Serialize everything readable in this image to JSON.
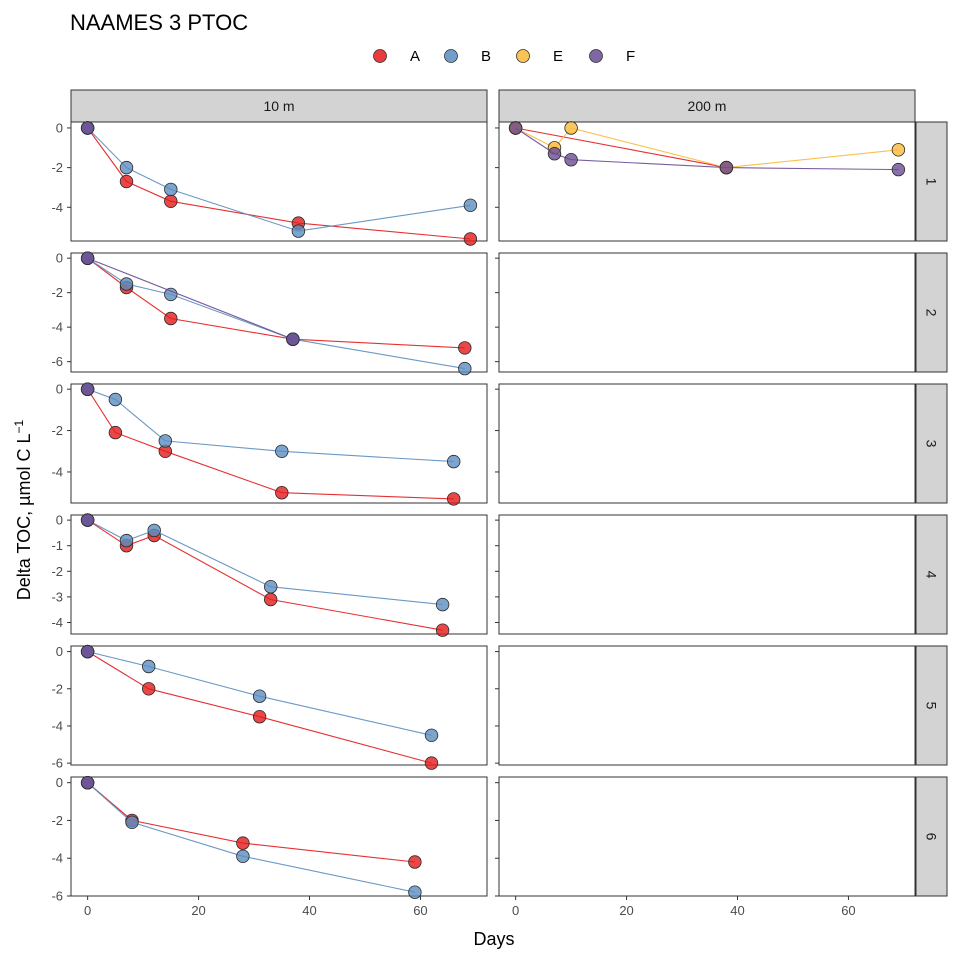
{
  "chart_data": {
    "type": "scatter",
    "title": "NAAMES 3 PTOC",
    "xlabel": "Days",
    "ylabel": "Delta TOC, µmol C L",
    "ylabel_superscript": "−1",
    "legend": {
      "position": "top",
      "entries": [
        {
          "label": "A",
          "color": "#E41A1C"
        },
        {
          "label": "B",
          "color": "#5B8DBF"
        },
        {
          "label": "E",
          "color": "#F9B938"
        },
        {
          "label": "F",
          "color": "#6A4C93"
        }
      ]
    },
    "x_range": [
      -3,
      72
    ],
    "x_ticks": [
      0,
      20,
      40,
      60
    ],
    "facet_columns": [
      "10 m",
      "200 m"
    ],
    "facet_rows": [
      "1",
      "2",
      "3",
      "4",
      "5",
      "6"
    ],
    "panels": [
      {
        "col": "10 m",
        "row": "1",
        "ylim": [
          -5.7,
          0.3
        ],
        "y_ticks": [
          0,
          -2,
          -4
        ],
        "series": [
          {
            "name": "A",
            "x": [
              0,
              7,
              15,
              38,
              69
            ],
            "y": [
              0,
              -2.7,
              -3.7,
              -4.8,
              -5.6
            ]
          },
          {
            "name": "B",
            "x": [
              0,
              7,
              15,
              38,
              69
            ],
            "y": [
              0,
              -2.0,
              -3.1,
              -5.2,
              -3.9
            ]
          },
          {
            "name": "F",
            "x": [
              0
            ],
            "y": [
              0
            ]
          }
        ]
      },
      {
        "col": "200 m",
        "row": "1",
        "ylim": [
          -5.7,
          0.3
        ],
        "y_ticks": [
          0,
          -2,
          -4
        ],
        "series": [
          {
            "name": "A",
            "x": [
              0,
              38
            ],
            "y": [
              0,
              -2.0
            ]
          },
          {
            "name": "E",
            "x": [
              0,
              7,
              10,
              38,
              69
            ],
            "y": [
              0,
              -1.0,
              0,
              -2.0,
              -1.1
            ]
          },
          {
            "name": "F",
            "x": [
              0,
              7,
              10,
              38,
              69
            ],
            "y": [
              0,
              -1.3,
              -1.6,
              -2.0,
              -2.1
            ]
          }
        ]
      },
      {
        "col": "10 m",
        "row": "2",
        "ylim": [
          -6.6,
          0.3
        ],
        "y_ticks": [
          0,
          -2,
          -4,
          -6
        ],
        "series": [
          {
            "name": "A",
            "x": [
              0,
              7,
              15,
              37,
              68
            ],
            "y": [
              0,
              -1.7,
              -3.5,
              -4.7,
              -5.2
            ]
          },
          {
            "name": "B",
            "x": [
              0,
              7,
              15,
              37,
              68
            ],
            "y": [
              0,
              -1.5,
              -2.1,
              -4.7,
              -6.4
            ]
          },
          {
            "name": "F",
            "x": [
              0,
              37
            ],
            "y": [
              0,
              -4.7
            ]
          }
        ]
      },
      {
        "col": "200 m",
        "row": "2",
        "ylim": [
          -6.6,
          0.3
        ],
        "y_ticks": [
          0,
          -2,
          -4,
          -6
        ],
        "series": []
      },
      {
        "col": "10 m",
        "row": "3",
        "ylim": [
          -5.5,
          0.25
        ],
        "y_ticks": [
          0,
          -2,
          -4
        ],
        "series": [
          {
            "name": "A",
            "x": [
              0,
              5,
              14,
              35,
              66
            ],
            "y": [
              0,
              -2.1,
              -3.0,
              -5.0,
              -5.3
            ]
          },
          {
            "name": "B",
            "x": [
              0,
              5,
              14,
              35,
              66
            ],
            "y": [
              0,
              -0.5,
              -2.5,
              -3.0,
              -3.5
            ]
          },
          {
            "name": "F",
            "x": [
              0
            ],
            "y": [
              0
            ]
          }
        ]
      },
      {
        "col": "200 m",
        "row": "3",
        "ylim": [
          -5.5,
          0.25
        ],
        "y_ticks": [
          0,
          -2,
          -4
        ],
        "series": []
      },
      {
        "col": "10 m",
        "row": "4",
        "ylim": [
          -4.45,
          0.2
        ],
        "y_ticks": [
          0,
          -1,
          -2,
          -3,
          -4
        ],
        "series": [
          {
            "name": "A",
            "x": [
              0,
              7,
              12,
              33,
              64
            ],
            "y": [
              0,
              -1.0,
              -0.6,
              -3.1,
              -4.3
            ]
          },
          {
            "name": "B",
            "x": [
              0,
              7,
              12,
              33,
              64
            ],
            "y": [
              0,
              -0.8,
              -0.4,
              -2.6,
              -3.3
            ]
          },
          {
            "name": "F",
            "x": [
              0
            ],
            "y": [
              0
            ]
          }
        ]
      },
      {
        "col": "200 m",
        "row": "4",
        "ylim": [
          -4.45,
          0.2
        ],
        "y_ticks": [
          0,
          -1,
          -2,
          -3,
          -4
        ],
        "series": []
      },
      {
        "col": "10 m",
        "row": "5",
        "ylim": [
          -6.1,
          0.3
        ],
        "y_ticks": [
          0,
          -2,
          -4,
          -6
        ],
        "series": [
          {
            "name": "A",
            "x": [
              0,
              11,
              31,
              62
            ],
            "y": [
              0,
              -2.0,
              -3.5,
              -6.0
            ]
          },
          {
            "name": "B",
            "x": [
              0,
              11,
              31,
              62
            ],
            "y": [
              0,
              -0.8,
              -2.4,
              -4.5
            ]
          },
          {
            "name": "F",
            "x": [
              0
            ],
            "y": [
              0
            ]
          }
        ]
      },
      {
        "col": "200 m",
        "row": "5",
        "ylim": [
          -6.1,
          0.3
        ],
        "y_ticks": [
          0,
          -2,
          -4,
          -6
        ],
        "series": []
      },
      {
        "col": "10 m",
        "row": "6",
        "ylim": [
          -6.0,
          0.3
        ],
        "y_ticks": [
          0,
          -2,
          -4,
          -6
        ],
        "series": [
          {
            "name": "A",
            "x": [
              0,
              8,
              28,
              59
            ],
            "y": [
              0,
              -2.0,
              -3.2,
              -4.2
            ]
          },
          {
            "name": "B",
            "x": [
              0,
              8,
              28,
              59
            ],
            "y": [
              0,
              -2.1,
              -3.9,
              -5.8
            ]
          },
          {
            "name": "F",
            "x": [
              0
            ],
            "y": [
              0
            ]
          }
        ]
      },
      {
        "col": "200 m",
        "row": "6",
        "ylim": [
          -6.0,
          0.3
        ],
        "y_ticks": [
          0,
          -2,
          -4,
          -6
        ],
        "series": []
      }
    ]
  }
}
